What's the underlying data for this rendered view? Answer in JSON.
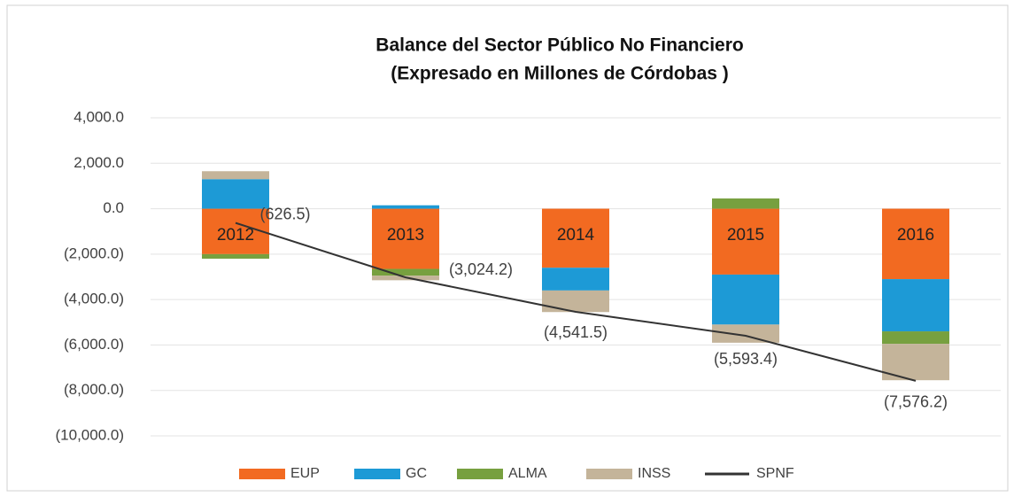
{
  "chart_data": {
    "type": "bar",
    "title": "Balance del Sector Público No Financiero",
    "subtitle": "(Expresado en Millones de Córdobas )",
    "categories": [
      "2012",
      "2013",
      "2014",
      "2015",
      "2016"
    ],
    "series": [
      {
        "name": "EUP",
        "color": "#f26a21",
        "values": [
          -2000,
          -2650,
          -2600,
          -2900,
          -3100
        ]
      },
      {
        "name": "GC",
        "color": "#1d9ad6",
        "values": [
          1300,
          150,
          -1000,
          -2200,
          -2300
        ]
      },
      {
        "name": "ALMA",
        "color": "#77a03f",
        "values": [
          -200,
          -300,
          0,
          450,
          -550
        ]
      },
      {
        "name": "INSS",
        "color": "#c4b49a",
        "values": [
          350,
          -200,
          -950,
          -800,
          -1600
        ]
      },
      {
        "name": "SPNF",
        "color": "#333333",
        "type": "line",
        "values": [
          -626.5,
          -3024.2,
          -4541.5,
          -5593.4,
          -7576.2
        ],
        "value_labels": [
          "(626.5)",
          "(3,024.2)",
          "(4,541.5)",
          "(5,593.4)",
          "(7,576.2)"
        ]
      }
    ],
    "stacked": true,
    "ylim": [
      -10000,
      4000
    ],
    "yticks": [
      {
        "value": -10000,
        "label": "(10,000.0)"
      },
      {
        "value": -8000,
        "label": "(8,000.0)"
      },
      {
        "value": -6000,
        "label": "(6,000.0)"
      },
      {
        "value": -4000,
        "label": "(4,000.0)"
      },
      {
        "value": -2000,
        "label": "(2,000.0)"
      },
      {
        "value": 0,
        "label": "0.0"
      },
      {
        "value": 2000,
        "label": "2,000.0"
      },
      {
        "value": 4000,
        "label": "4,000.0"
      }
    ],
    "grid": true,
    "legend": "bottom"
  }
}
